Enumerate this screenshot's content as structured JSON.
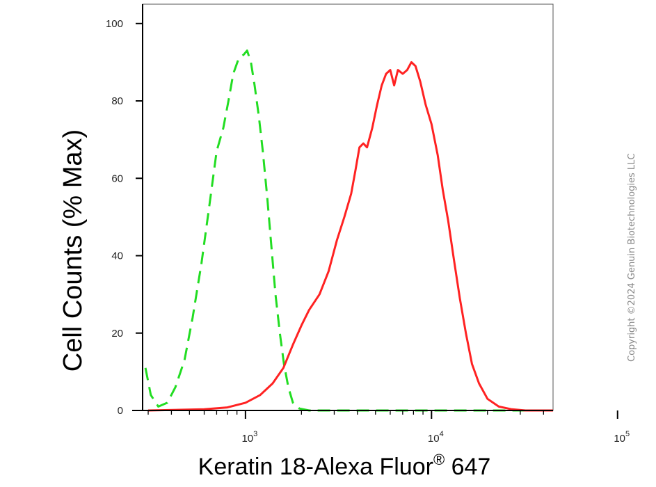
{
  "chart_data": {
    "type": "line",
    "xlabel": "Keratin 18-Alexa Fluor",
    "xlabel_superscript": "®",
    "xlabel_suffix": " 647",
    "ylabel": "Cell Counts (% Max)",
    "x_scale": "log",
    "xlim": [
      280,
      45000
    ],
    "ylim": [
      0,
      105
    ],
    "y_ticks": [
      0,
      20,
      40,
      60,
      80,
      100
    ],
    "x_major_ticks": [
      1000,
      10000,
      100000
    ],
    "x_tick_labels": [
      {
        "base": "10",
        "exp": "3"
      },
      {
        "base": "10",
        "exp": "4"
      },
      {
        "base": "10",
        "exp": "5"
      }
    ],
    "grid": false,
    "series": [
      {
        "color": "#22dd22",
        "style": "dashed",
        "points": [
          [
            290,
            11
          ],
          [
            310,
            4
          ],
          [
            340,
            1
          ],
          [
            380,
            2
          ],
          [
            420,
            6
          ],
          [
            470,
            13
          ],
          [
            520,
            24
          ],
          [
            580,
            38
          ],
          [
            640,
            53
          ],
          [
            700,
            67
          ],
          [
            760,
            73
          ],
          [
            810,
            80
          ],
          [
            860,
            87
          ],
          [
            920,
            91
          ],
          [
            980,
            92
          ],
          [
            1020,
            93
          ],
          [
            1070,
            90
          ],
          [
            1120,
            84
          ],
          [
            1180,
            76
          ],
          [
            1240,
            67
          ],
          [
            1310,
            55
          ],
          [
            1380,
            42
          ],
          [
            1450,
            30
          ],
          [
            1530,
            20
          ],
          [
            1610,
            12
          ],
          [
            1700,
            6
          ],
          [
            1800,
            2
          ],
          [
            1950,
            0.5
          ],
          [
            2200,
            0
          ],
          [
            45000,
            0
          ]
        ]
      },
      {
        "color": "#ff2222",
        "style": "solid",
        "points": [
          [
            300,
            0
          ],
          [
            600,
            0.3
          ],
          [
            800,
            0.8
          ],
          [
            1000,
            2
          ],
          [
            1200,
            4
          ],
          [
            1400,
            7
          ],
          [
            1600,
            11
          ],
          [
            1800,
            17
          ],
          [
            2000,
            22
          ],
          [
            2200,
            26
          ],
          [
            2500,
            30
          ],
          [
            2800,
            36
          ],
          [
            3100,
            44
          ],
          [
            3400,
            50
          ],
          [
            3700,
            56
          ],
          [
            3900,
            62
          ],
          [
            4100,
            68
          ],
          [
            4300,
            69
          ],
          [
            4500,
            68
          ],
          [
            4800,
            73
          ],
          [
            5100,
            79
          ],
          [
            5400,
            84
          ],
          [
            5700,
            87
          ],
          [
            6000,
            88
          ],
          [
            6300,
            84
          ],
          [
            6600,
            88
          ],
          [
            7000,
            87
          ],
          [
            7400,
            88
          ],
          [
            7800,
            90
          ],
          [
            8200,
            89
          ],
          [
            8700,
            85
          ],
          [
            9300,
            79
          ],
          [
            10000,
            74
          ],
          [
            10800,
            66
          ],
          [
            11500,
            57
          ],
          [
            12300,
            49
          ],
          [
            13200,
            39
          ],
          [
            14200,
            29
          ],
          [
            15300,
            20
          ],
          [
            16500,
            12
          ],
          [
            18000,
            7
          ],
          [
            20000,
            3
          ],
          [
            23000,
            1
          ],
          [
            27000,
            0.3
          ],
          [
            32000,
            0
          ],
          [
            45000,
            0
          ]
        ]
      }
    ]
  },
  "watermark": "Copyright ©2024 Genuin Biotechnologies LLC"
}
